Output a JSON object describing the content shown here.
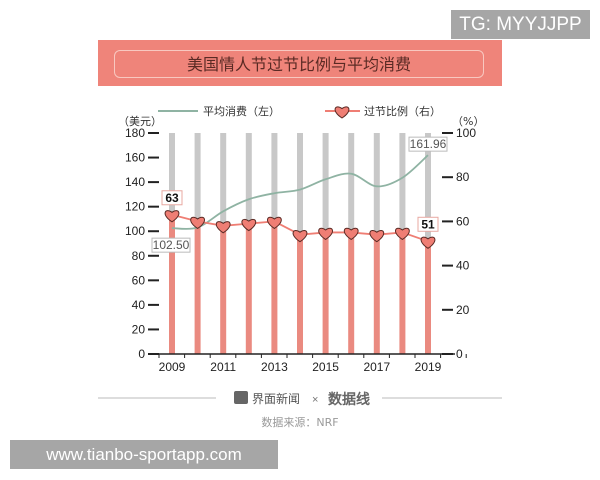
{
  "watermark_top": "TG: MYYJJPP",
  "watermark_bottom": "www.tianbo-sportapp.com",
  "footer": {
    "brand1": "界面新闻",
    "times": "×",
    "brand2": "数据线",
    "source": "数据来源：NRF"
  },
  "colors": {
    "spending_line": "#8fb3a3",
    "ratio_bar": "#ea8a80",
    "ratio_marker": "#ef7e74",
    "bar_bg": "#c8c8c8",
    "banner": "#ef847a"
  },
  "chart_data": {
    "type": "bar+line",
    "title": "美国情人节过节比例与平均消费",
    "categories": [
      "2009",
      "2010",
      "2011",
      "2012",
      "2013",
      "2014",
      "2015",
      "2016",
      "2017",
      "2018",
      "2019"
    ],
    "x_tick_labels": [
      "2009",
      "2011",
      "2013",
      "2015",
      "2017",
      "2019"
    ],
    "left_axis": {
      "unit": "（美元）",
      "range": [
        0,
        180
      ],
      "ticks": [
        "0",
        "20",
        "40",
        "60",
        "80",
        "100",
        "120",
        "140",
        "160",
        "180"
      ]
    },
    "right_axis": {
      "unit": "（%）",
      "range": [
        0,
        100
      ],
      "ticks": [
        "0",
        "20",
        "40",
        "60",
        "80",
        "100"
      ]
    },
    "series": [
      {
        "name": "平均消费（左）",
        "type": "line",
        "axis": "left",
        "values": [
          102.5,
          103.0,
          116.21,
          126.03,
          130.97,
          133.91,
          142.31,
          146.84,
          136.57,
          143.56,
          161.96
        ]
      },
      {
        "name": "过节比例（右）",
        "type": "bar",
        "axis": "right",
        "values": [
          63,
          60,
          58,
          59,
          60,
          54,
          55,
          55,
          54,
          55,
          51
        ]
      }
    ],
    "annotations": [
      {
        "series": 0,
        "index": 0,
        "label": "102.50"
      },
      {
        "series": 0,
        "index": 10,
        "label": "161.96"
      },
      {
        "series": 1,
        "index": 0,
        "label": "63"
      },
      {
        "series": 1,
        "index": 10,
        "label": "51"
      }
    ],
    "grid": false,
    "legend": "top"
  }
}
